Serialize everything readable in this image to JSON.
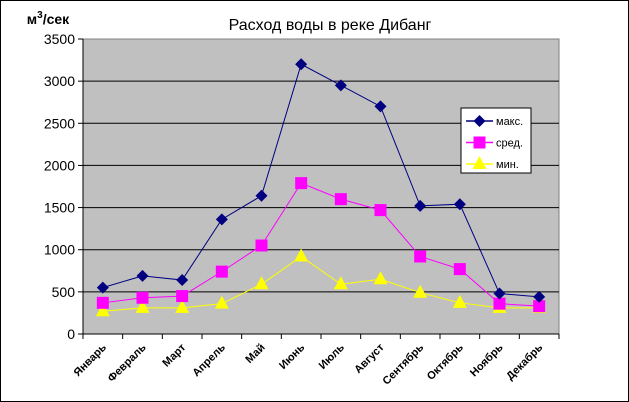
{
  "chart_data": {
    "type": "line",
    "title": "Расход воды в реке Дибанг",
    "ylabel": "м³/сек",
    "ylabel_base": "м",
    "ylabel_sup": "3",
    "ylabel_rest": "/сек",
    "xlabel": "",
    "ylim": [
      0,
      3500
    ],
    "yticks": [
      0,
      500,
      1000,
      1500,
      2000,
      2500,
      3000,
      3500
    ],
    "grid": true,
    "legend_position": "right",
    "plot_background": "#c0c0c0",
    "categories": [
      "Январь",
      "Февраль",
      "Март",
      "Апрель",
      "Май",
      "Июнь",
      "Июль",
      "Август",
      "Сентябрь",
      "Октябрь",
      "Ноябрь",
      "Декабрь"
    ],
    "series": [
      {
        "name": "макс.",
        "color": "#000080",
        "marker": "diamond",
        "values": [
          550,
          690,
          640,
          1360,
          1640,
          3200,
          2950,
          2700,
          1520,
          1540,
          480,
          440
        ]
      },
      {
        "name": "сред.",
        "color": "#ff00ff",
        "marker": "square",
        "values": [
          370,
          430,
          450,
          740,
          1050,
          1790,
          1600,
          1470,
          920,
          770,
          360,
          330
        ]
      },
      {
        "name": "мин.",
        "color": "#ffff00",
        "marker": "triangle",
        "values": [
          270,
          310,
          310,
          360,
          590,
          920,
          590,
          650,
          490,
          370,
          310,
          310
        ]
      }
    ]
  }
}
